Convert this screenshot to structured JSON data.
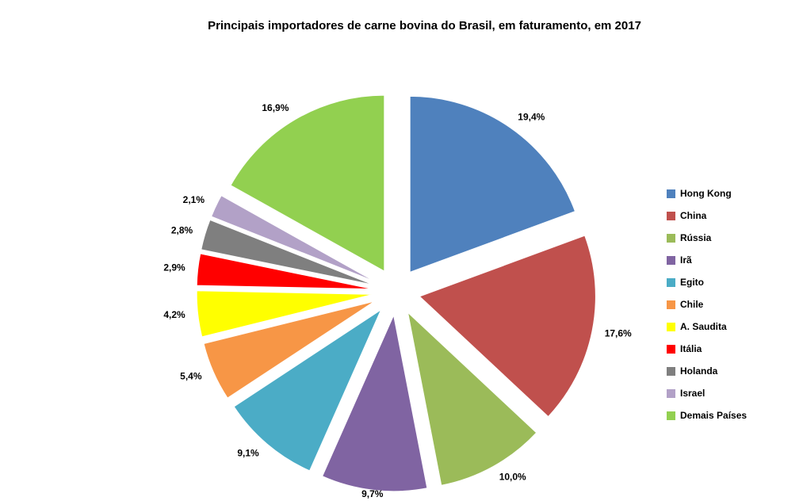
{
  "chart_data": {
    "type": "pie",
    "title": "Principais importadores de carne bovina do Brasil, em faturamento, em 2017",
    "categories": [
      "Hong Kong",
      "China",
      "Rússia",
      "Irã",
      "Egito",
      "Chile",
      "A. Saudita",
      "Itália",
      "Holanda",
      "Israel",
      "Demais Países"
    ],
    "values": [
      19.4,
      17.6,
      10.0,
      9.7,
      9.1,
      5.4,
      4.2,
      2.9,
      2.8,
      2.1,
      16.9
    ],
    "labels": [
      "19,4%",
      "17,6%",
      "10,0%",
      "9,7%",
      "9,1%",
      "5,4%",
      "4,2%",
      "2,9%",
      "2,8%",
      "2,1%",
      "16,9%"
    ],
    "colors": [
      "#4F81BD",
      "#C0504D",
      "#9BBB59",
      "#8064A2",
      "#4BACC6",
      "#F79646",
      "#FFFF00",
      "#FF0000",
      "#7F7F7F",
      "#B2A1C7",
      "#92D050"
    ],
    "legend_position": "right",
    "start_angle_deg": 0,
    "direction": "clockwise",
    "exploded": true,
    "background": "#FFFFFF"
  }
}
